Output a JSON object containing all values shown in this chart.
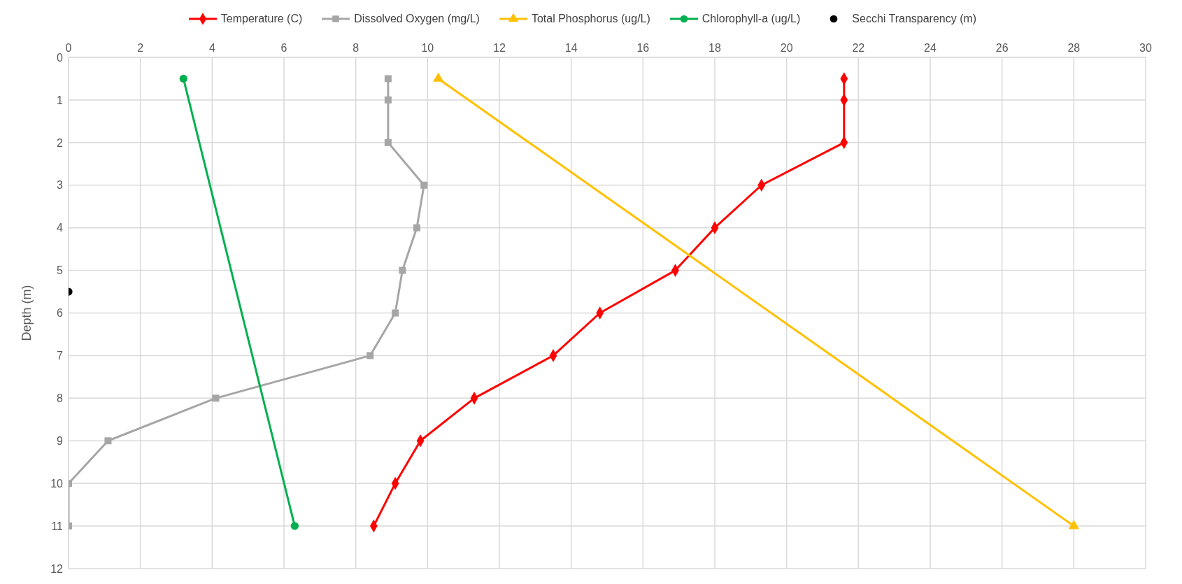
{
  "chart_data": {
    "type": "line",
    "ylabel": "Depth (m)",
    "xlim": [
      0,
      30
    ],
    "xticks": [
      0,
      2,
      4,
      6,
      8,
      10,
      12,
      14,
      16,
      18,
      20,
      22,
      24,
      26,
      28,
      30
    ],
    "ylim": [
      12,
      0
    ],
    "yticks": [
      0,
      1,
      2,
      3,
      4,
      5,
      6,
      7,
      8,
      9,
      10,
      11,
      12
    ],
    "grid": true,
    "legend": "top",
    "line_style": "solid",
    "series": [
      {
        "name": "Temperature (C)",
        "color": "#ff0000",
        "marker": "diamond",
        "x": [
          21.6,
          21.6,
          21.6,
          19.3,
          18.0,
          16.9,
          14.8,
          13.5,
          11.3,
          9.8,
          9.1,
          8.5
        ],
        "values": [
          0.5,
          1,
          2,
          3,
          4,
          5,
          6,
          7,
          8,
          9,
          10,
          11
        ]
      },
      {
        "name": "Dissolved Oxygen (mg/L)",
        "color": "#a6a6a6",
        "marker": "square",
        "x": [
          8.9,
          8.9,
          8.9,
          9.9,
          9.7,
          9.3,
          9.1,
          8.4,
          4.1,
          1.1,
          0,
          0
        ],
        "values": [
          0.5,
          1,
          2,
          3,
          4,
          5,
          6,
          7,
          8,
          9,
          10,
          11
        ]
      },
      {
        "name": "Total Phosphorus (ug/L)",
        "color": "#ffc000",
        "marker": "triangle",
        "x": [
          10.3,
          28
        ],
        "values": [
          0.5,
          11
        ]
      },
      {
        "name": "Chlorophyll-a (ug/L)",
        "color": "#00b050",
        "marker": "circle",
        "x": [
          3.2,
          6.3
        ],
        "values": [
          0.5,
          11
        ]
      },
      {
        "name": "Secchi Transparency (m)",
        "color": "#000000",
        "marker": "circle",
        "type": "scatter",
        "x": [
          0
        ],
        "values": [
          5.5
        ]
      }
    ]
  }
}
